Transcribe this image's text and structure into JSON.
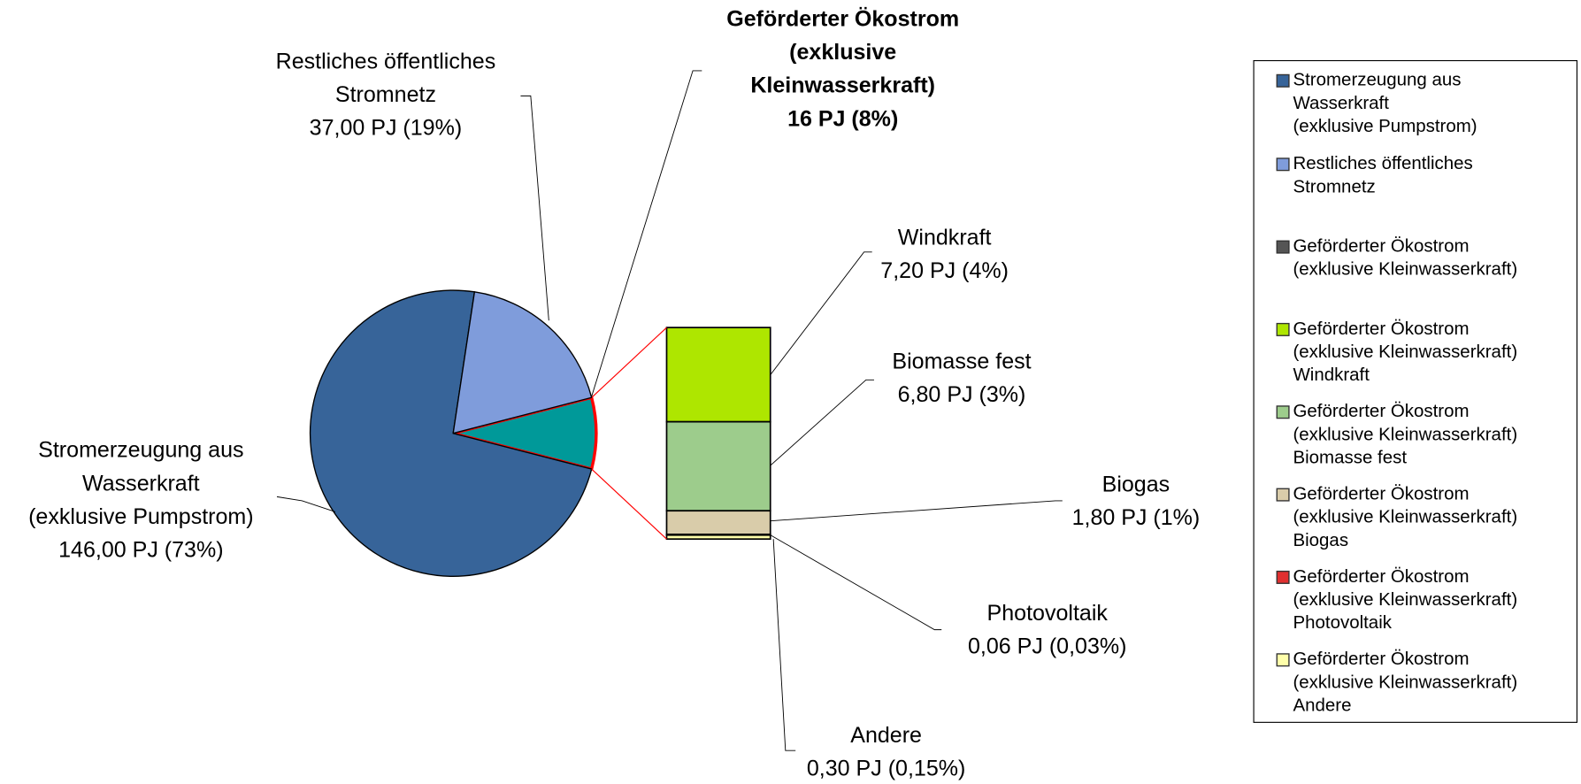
{
  "chart_data": {
    "type": "pie_of_bar",
    "pie": {
      "labels": [
        [
          "Stromerzeugung aus",
          "Wasserkraft",
          "(exklusive Pumpstrom)"
        ],
        [
          "Restliches öffentliches",
          "Stromnetz"
        ],
        [
          "Geförderter Ökostrom",
          "(exklusive",
          "Kleinwasserkraft)"
        ]
      ],
      "values": [
        146,
        37,
        16
      ],
      "value_labels": [
        "146,00 PJ (73%)",
        "37,00 PJ (19%)",
        "16 PJ (8%)"
      ],
      "colors": [
        "#376499",
        "#7f9cdb",
        "#009999"
      ]
    },
    "bar": {
      "labels": [
        "Windkraft",
        "Biomasse fest",
        "Biogas",
        "Photovoltaik",
        "Andere"
      ],
      "values": [
        7.2,
        6.8,
        1.8,
        0.06,
        0.3
      ],
      "value_labels": [
        "7,20 PJ (4%)",
        "6,80 PJ (3%)",
        "1,80 PJ (1%)",
        "0,06 PJ (0,03%)",
        "0,30 PJ (0,15%)"
      ],
      "colors": [
        "#aee600",
        "#9dcc8c",
        "#d9ccaa",
        "#e03030",
        "#ffffaa"
      ]
    },
    "legend": [
      {
        "lines": [
          "Stromerzeugung aus",
          "Wasserkraft",
          "(exklusive Pumpstrom)"
        ],
        "color": "#376499"
      },
      {
        "lines": [
          "Restliches öffentliches",
          "Stromnetz"
        ],
        "color": "#7f9cdb"
      },
      {
        "lines": [
          "Geförderter Ökostrom",
          "(exklusive Kleinwasserkraft)"
        ],
        "color": "#555555"
      },
      {
        "lines": [
          "Geförderter Ökostrom",
          "(exklusive Kleinwasserkraft)",
          "Windkraft"
        ],
        "color": "#aee600"
      },
      {
        "lines": [
          "Geförderter Ökostrom",
          "(exklusive Kleinwasserkraft)",
          "Biomasse fest"
        ],
        "color": "#9dcc8c"
      },
      {
        "lines": [
          "Geförderter Ökostrom",
          "(exklusive Kleinwasserkraft)",
          "Biogas"
        ],
        "color": "#d9ccaa"
      },
      {
        "lines": [
          "Geförderter Ökostrom",
          "(exklusive Kleinwasserkraft)",
          "Photovoltaik"
        ],
        "color": "#e03030"
      },
      {
        "lines": [
          "Geförderter Ökostrom",
          "(exklusive Kleinwasserkraft)",
          "Andere"
        ],
        "color": "#ffffaa"
      }
    ]
  }
}
